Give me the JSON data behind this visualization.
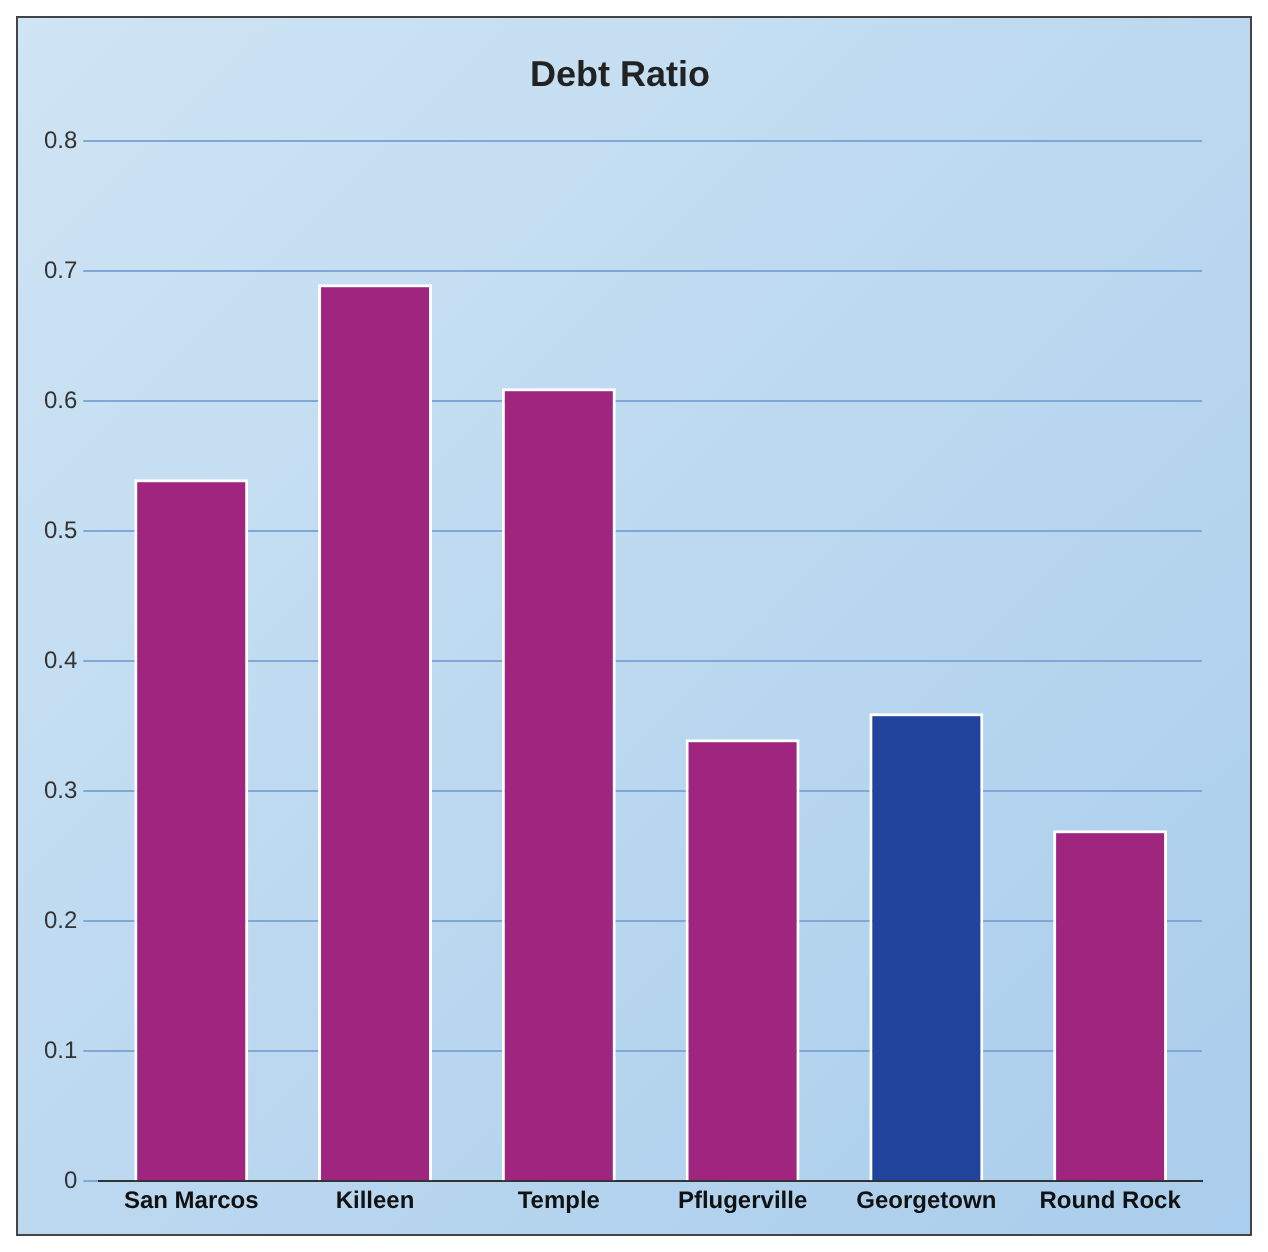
{
  "chart_data": {
    "type": "bar",
    "title": "Debt Ratio",
    "categories": [
      "San Marcos",
      "Killeen",
      "Temple",
      "Pflugerville",
      "Georgetown",
      "Round Rock"
    ],
    "values": [
      0.54,
      0.69,
      0.61,
      0.34,
      0.36,
      0.27
    ],
    "colors": [
      "#a0257f",
      "#a0257f",
      "#a0257f",
      "#a0257f",
      "#22439c",
      "#a0257f"
    ],
    "ylim": [
      0,
      0.8
    ],
    "yticks": [
      0,
      0.1,
      0.2,
      0.3,
      0.4,
      0.5,
      0.6,
      0.7,
      0.8
    ],
    "grid": "y",
    "legend": false
  }
}
